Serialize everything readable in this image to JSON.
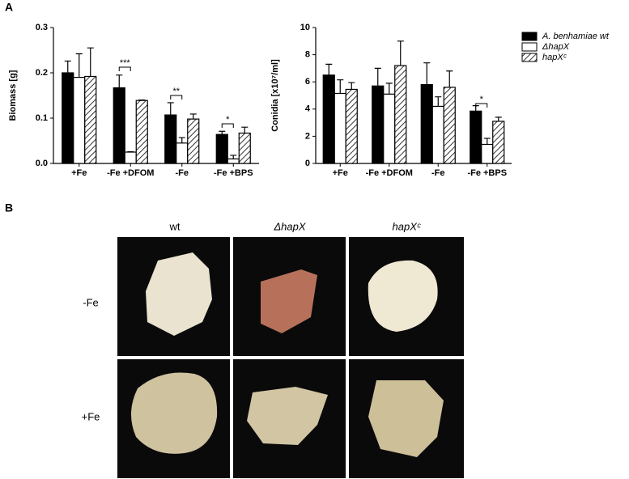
{
  "panel_labels": [
    "A",
    "B"
  ],
  "chart_data": [
    {
      "type": "bar",
      "ylabel": "Biomass [g]",
      "categories": [
        "+Fe",
        "-Fe +DFOM",
        "-Fe",
        "-Fe +BPS"
      ],
      "series": [
        {
          "name": "A. benhamiae wt",
          "color": "#000000",
          "values": [
            0.2,
            0.167,
            0.107,
            0.064
          ],
          "errors": [
            0.026,
            0.028,
            0.027,
            0.007
          ]
        },
        {
          "name": "ΔhapX",
          "color": "#ffffff",
          "values": [
            0.19,
            0.025,
            0.045,
            0.01
          ],
          "errors": [
            0.052,
            0.001,
            0.012,
            0.008
          ]
        },
        {
          "name": "hapXᶜ",
          "color": "hatch",
          "values": [
            0.192,
            0.139,
            0.098,
            0.067
          ],
          "errors": [
            0.063,
            0.001,
            0.011,
            0.013
          ]
        }
      ],
      "annotations": [
        "***",
        "**",
        "*"
      ],
      "ylim": [
        0,
        0.3
      ],
      "yticks": [
        {
          "value": 0,
          "label": "0.0"
        },
        0.1,
        0.2,
        0.3
      ]
    },
    {
      "type": "bar",
      "ylabel": "Conidia [x10⁷/ml]",
      "categories": [
        "+Fe",
        "-Fe +DFOM",
        "-Fe",
        "-Fe +BPS"
      ],
      "series": [
        {
          "name": "A. benhamiae wt",
          "color": "#000000",
          "values": [
            6.5,
            5.7,
            5.8,
            3.85
          ],
          "errors": [
            0.8,
            1.3,
            1.6,
            0.4
          ]
        },
        {
          "name": "ΔhapX",
          "color": "#ffffff",
          "values": [
            5.15,
            5.1,
            4.2,
            1.4
          ],
          "errors": [
            1.0,
            0.8,
            0.7,
            0.45
          ]
        },
        {
          "name": "hapXᶜ",
          "color": "hatch",
          "values": [
            5.45,
            7.2,
            5.6,
            3.1
          ],
          "errors": [
            0.5,
            1.8,
            1.2,
            0.3
          ]
        }
      ],
      "annotations": [
        "*"
      ],
      "ylim": [
        0,
        10
      ],
      "yticks": [
        0,
        2,
        4,
        6,
        8,
        10
      ]
    }
  ],
  "panel_b": {
    "columns": [
      "wt",
      "ΔhapX",
      "hapXᶜ"
    ],
    "rows": [
      "-Fe",
      "+Fe"
    ]
  }
}
